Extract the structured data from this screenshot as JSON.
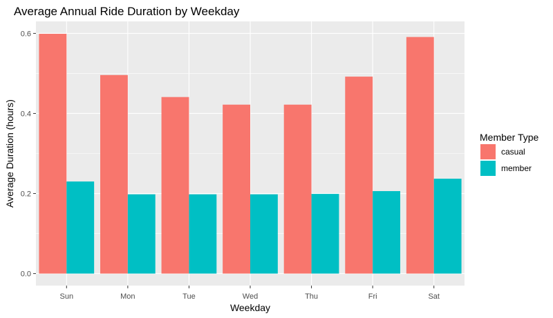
{
  "chart_data": {
    "type": "bar",
    "title": "Average Annual Ride Duration by Weekday",
    "xlabel": "Weekday",
    "ylabel": "Average Duration (hours)",
    "categories": [
      "Sun",
      "Mon",
      "Tue",
      "Wed",
      "Thu",
      "Fri",
      "Sat"
    ],
    "series": [
      {
        "name": "casual",
        "color": "#F8766D",
        "values": [
          0.599,
          0.496,
          0.441,
          0.422,
          0.422,
          0.492,
          0.591
        ]
      },
      {
        "name": "member",
        "color": "#00BFC4",
        "values": [
          0.23,
          0.198,
          0.198,
          0.198,
          0.199,
          0.206,
          0.237
        ]
      }
    ],
    "yticks": [
      0.0,
      0.2,
      0.4,
      0.6
    ],
    "ytick_labels": [
      "0.0",
      "0.2",
      "0.4",
      "0.6"
    ],
    "ylim": [
      -0.03,
      0.63
    ],
    "grid": true,
    "legend": {
      "title": "Member Type",
      "position": "right"
    },
    "panel_background": "#EBEBEB"
  }
}
